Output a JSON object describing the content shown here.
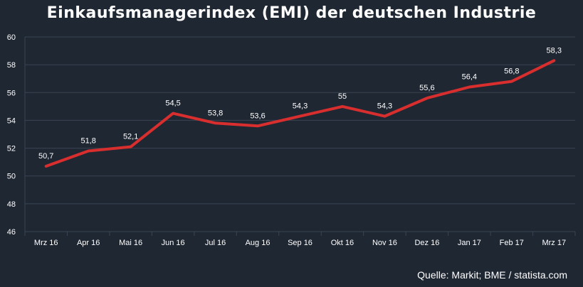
{
  "chart_data": {
    "type": "line",
    "title": "Einkaufsmanagerindex (EMI) der deutschen Industrie",
    "categories": [
      "Mrz 16",
      "Apr 16",
      "Mai 16",
      "Jun 16",
      "Jul 16",
      "Aug 16",
      "Sep 16",
      "Okt 16",
      "Nov 16",
      "Dez 16",
      "Jan 17",
      "Feb 17",
      "Mrz 17"
    ],
    "values": [
      50.7,
      51.8,
      52.1,
      54.5,
      53.8,
      53.6,
      54.3,
      55,
      54.3,
      55.6,
      56.4,
      56.8,
      58.3
    ],
    "data_labels": [
      "50,7",
      "51,8",
      "52,1",
      "54,5",
      "53,8",
      "53,6",
      "54,3",
      "55",
      "54,3",
      "55,6",
      "56,4",
      "56,8",
      "58,3"
    ],
    "y_ticks": [
      "46",
      "48",
      "50",
      "52",
      "54",
      "56",
      "58",
      "60"
    ],
    "ylim": [
      46,
      60
    ],
    "xlabel": "",
    "ylabel": "",
    "grid": true,
    "line_color": "#d92e2e"
  },
  "source": "Quelle: Markit; BME / statista.com"
}
